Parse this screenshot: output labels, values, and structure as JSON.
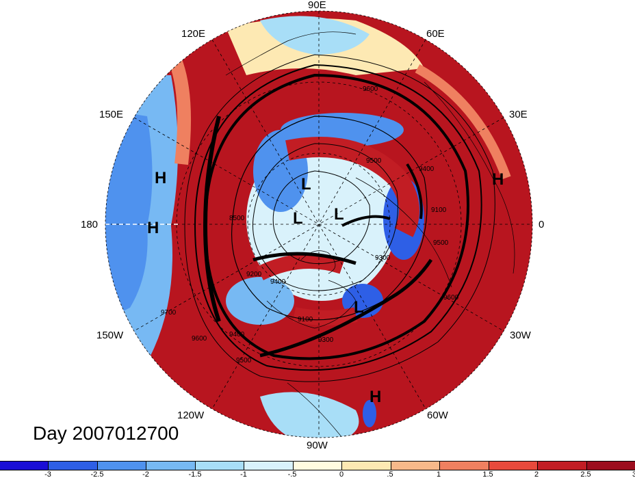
{
  "longitude_labels": [
    {
      "id": "90E",
      "text": "90E"
    },
    {
      "id": "60E",
      "text": "60E"
    },
    {
      "id": "120E",
      "text": "120E"
    },
    {
      "id": "150E",
      "text": "150E"
    },
    {
      "id": "30E",
      "text": "30E"
    },
    {
      "id": "180",
      "text": "180"
    },
    {
      "id": "0",
      "text": "0"
    },
    {
      "id": "150W",
      "text": "150W"
    },
    {
      "id": "30W",
      "text": "30W"
    },
    {
      "id": "120W",
      "text": "120W"
    },
    {
      "id": "60W",
      "text": "60W"
    },
    {
      "id": "90W",
      "text": "90W"
    }
  ],
  "pressure_centers": [
    {
      "type": "H"
    },
    {
      "type": "H"
    },
    {
      "type": "H"
    },
    {
      "type": "H"
    },
    {
      "type": "L"
    },
    {
      "type": "L"
    },
    {
      "type": "L"
    },
    {
      "type": "L"
    }
  ],
  "contour_labels": [
    "9600",
    "9500",
    "9400",
    "9100",
    "9500",
    "8500",
    "9200",
    "9300",
    "9400",
    "9700",
    "9600",
    "9400",
    "9100",
    "9300",
    "9500",
    "9600"
  ],
  "title": "Day 2007012700",
  "colorbar": {
    "colors": [
      "#1a0fd6",
      "#2e5fe6",
      "#4f92ee",
      "#77b9f3",
      "#a8def7",
      "#d9f2fb",
      "#fffbe0",
      "#fde9b3",
      "#f7b98a",
      "#ef8060",
      "#e84a3c",
      "#c21d24",
      "#9c0d1e"
    ],
    "tick_labels": [
      "-3",
      "-2.5",
      "-2",
      "-1.5",
      "-1",
      "-.5",
      "0",
      ".5",
      "1",
      "1.5",
      "2",
      "2.5",
      "3"
    ]
  }
}
